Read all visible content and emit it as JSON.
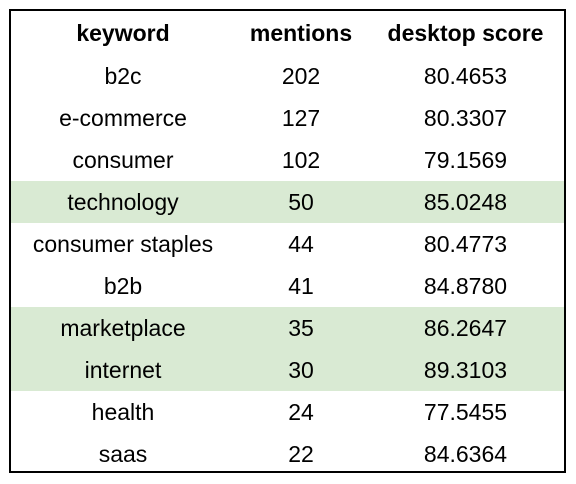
{
  "highlight_color": "#d9ead3",
  "chart_data": {
    "type": "table",
    "columns": [
      "keyword",
      "mentions",
      "desktop score"
    ],
    "rows": [
      {
        "keyword": "b2c",
        "mentions": "202",
        "desktop_score": "80.4653",
        "highlighted": false
      },
      {
        "keyword": "e-commerce",
        "mentions": "127",
        "desktop_score": "80.3307",
        "highlighted": false
      },
      {
        "keyword": "consumer",
        "mentions": "102",
        "desktop_score": "79.1569",
        "highlighted": false
      },
      {
        "keyword": "technology",
        "mentions": "50",
        "desktop_score": "85.0248",
        "highlighted": true
      },
      {
        "keyword": "consumer staples",
        "mentions": "44",
        "desktop_score": "80.4773",
        "highlighted": false
      },
      {
        "keyword": "b2b",
        "mentions": "41",
        "desktop_score": "84.8780",
        "highlighted": false
      },
      {
        "keyword": "marketplace",
        "mentions": "35",
        "desktop_score": "86.2647",
        "highlighted": true
      },
      {
        "keyword": "internet",
        "mentions": "30",
        "desktop_score": "89.3103",
        "highlighted": true
      },
      {
        "keyword": "health",
        "mentions": "24",
        "desktop_score": "77.5455",
        "highlighted": false
      },
      {
        "keyword": "saas",
        "mentions": "22",
        "desktop_score": "84.6364",
        "highlighted": false
      }
    ]
  }
}
